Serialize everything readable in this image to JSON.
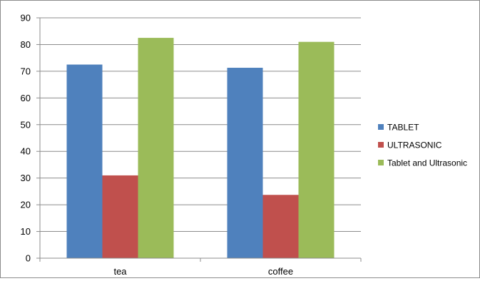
{
  "chart_data": {
    "type": "bar",
    "title": "",
    "xlabel": "",
    "ylabel": "",
    "categories": [
      "tea",
      "coffee"
    ],
    "ylim": [
      0,
      90
    ],
    "yticks": [
      "0",
      "10",
      "20",
      "30",
      "40",
      "50",
      "60",
      "70",
      "80",
      "90"
    ],
    "grid": true,
    "legend_position": "right",
    "series": [
      {
        "name": "TABLET",
        "color": "#4F81BD",
        "values": [
          72.5,
          71.3
        ]
      },
      {
        "name": "ULTRASONIC",
        "color": "#C0504D",
        "values": [
          31.0,
          23.7
        ]
      },
      {
        "name": "Tablet and Ultrasonic",
        "color": "#9BBB59",
        "values": [
          82.5,
          81.0
        ]
      }
    ]
  }
}
